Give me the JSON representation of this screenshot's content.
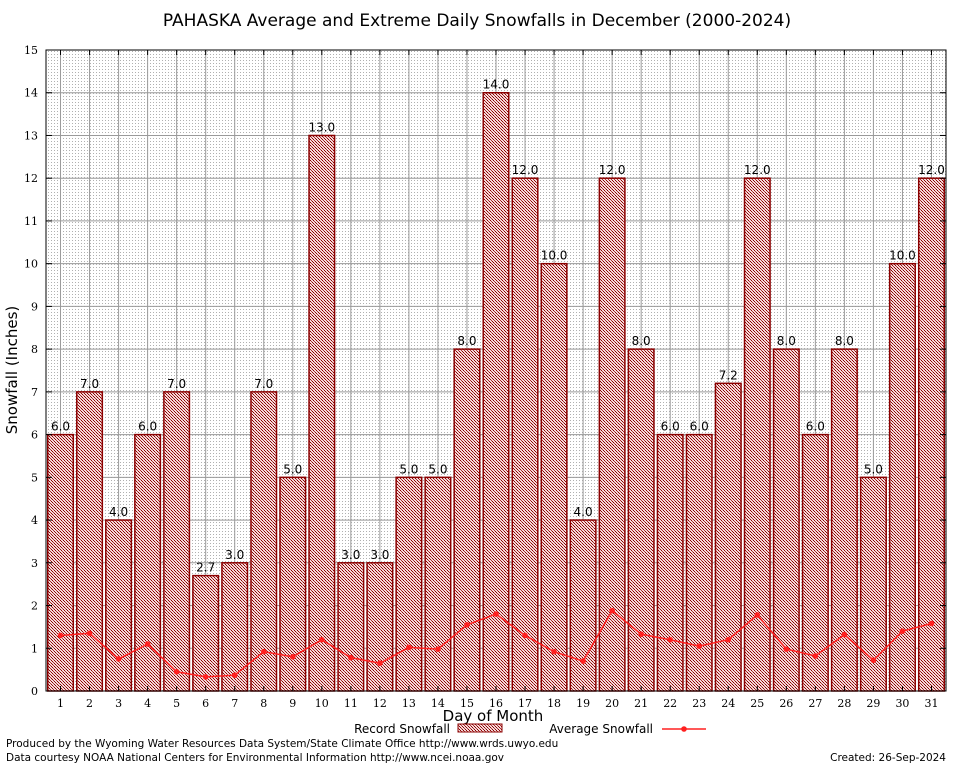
{
  "chart_data": {
    "type": "bar",
    "title": "PAHASKA Average and Extreme Daily Snowfalls in December (2000-2024)",
    "xlabel": "Day of Month",
    "ylabel": "Snowfall (Inches)",
    "ylim": [
      0,
      15
    ],
    "yticks": [
      "0",
      "1",
      "2",
      "3",
      "4",
      "5",
      "6",
      "7",
      "8",
      "9",
      "10",
      "11",
      "12",
      "13",
      "14",
      "15"
    ],
    "categories": [
      "1",
      "2",
      "3",
      "4",
      "5",
      "6",
      "7",
      "8",
      "9",
      "10",
      "11",
      "12",
      "13",
      "14",
      "15",
      "16",
      "17",
      "18",
      "19",
      "20",
      "21",
      "22",
      "23",
      "24",
      "25",
      "26",
      "27",
      "28",
      "29",
      "30",
      "31"
    ],
    "grid": true,
    "legend_position": "bottom",
    "series": [
      {
        "name": "Record Snowfall",
        "type": "bar",
        "color": "#8b0000",
        "values": [
          6.0,
          7.0,
          4.0,
          6.0,
          7.0,
          2.7,
          3.0,
          7.0,
          5.0,
          13.0,
          3.0,
          3.0,
          5.0,
          5.0,
          8.0,
          14.0,
          12.0,
          10.0,
          4.0,
          12.0,
          8.0,
          6.0,
          6.0,
          7.2,
          12.0,
          8.0,
          6.0,
          8.0,
          5.0,
          10.0,
          12.0
        ],
        "labels": [
          "6.0",
          "7.0",
          "4.0",
          "6.0",
          "7.0",
          "2.7",
          "3.0",
          "7.0",
          "5.0",
          "13.0",
          "3.0",
          "3.0",
          "5.0",
          "5.0",
          "8.0",
          "14.0",
          "12.0",
          "10.0",
          "4.0",
          "12.0",
          "8.0",
          "6.0",
          "6.0",
          "7.2",
          "12.0",
          "8.0",
          "6.0",
          "8.0",
          "5.0",
          "10.0",
          "12.0"
        ]
      },
      {
        "name": "Average Snowfall",
        "type": "line",
        "color": "#ff2020",
        "values": [
          1.3,
          1.35,
          0.75,
          1.1,
          0.45,
          0.33,
          0.37,
          0.92,
          0.8,
          1.2,
          0.78,
          0.65,
          1.02,
          0.98,
          1.55,
          1.8,
          1.3,
          0.92,
          0.7,
          1.88,
          1.33,
          1.2,
          1.05,
          1.2,
          1.78,
          0.98,
          0.82,
          1.32,
          0.72,
          1.4,
          1.58
        ]
      }
    ]
  },
  "footer": {
    "line1": "Produced by the Wyoming Water Resources Data System/State Climate Office http://www.wrds.uwyo.edu",
    "line2": "Data courtesy NOAA National Centers for Environmental Information http://www.ncei.noaa.gov",
    "created": "Created:  26-Sep-2024"
  }
}
